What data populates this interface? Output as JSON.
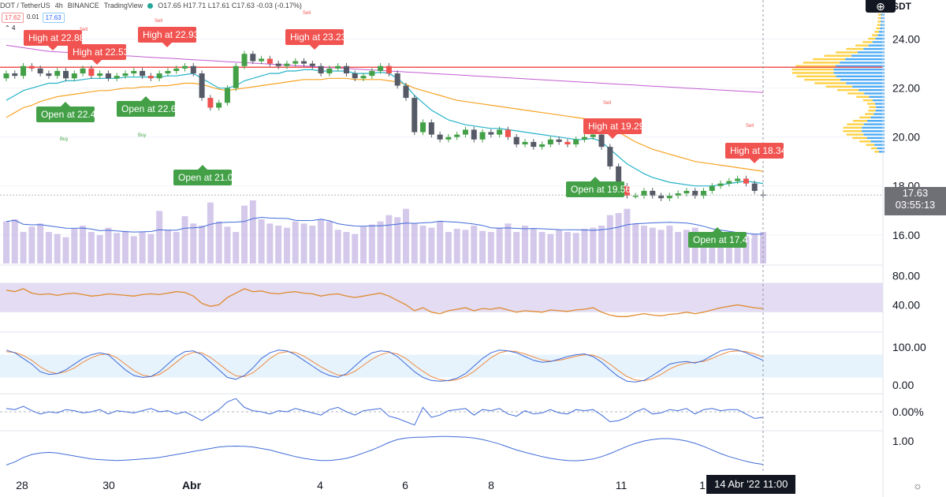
{
  "header": {
    "symbol": "DOT / TetherUS",
    "interval": "4h",
    "exchange": "BINANCE",
    "platform": "TradingView",
    "ohlc": "O17.65 H17.71 L17.61 C17.63 -0.03 (-0.17%)",
    "bid": "17.62",
    "spread": "0.01",
    "ask": "17.63",
    "indicator_count": "4",
    "currency": "USDT"
  },
  "flags": [
    {
      "kind": "high",
      "text": "High at 22.88"
    },
    {
      "kind": "high",
      "text": "High at 22.53"
    },
    {
      "kind": "high",
      "text": "High at 22.93"
    },
    {
      "kind": "high",
      "text": "High at 23.23"
    },
    {
      "kind": "high",
      "text": "High at 19.29"
    },
    {
      "kind": "high",
      "text": "High at 18.34"
    },
    {
      "kind": "open",
      "text": "Open at 22.44"
    },
    {
      "kind": "open",
      "text": "Open at 22.6"
    },
    {
      "kind": "open",
      "text": "Open at 21.07"
    },
    {
      "kind": "open",
      "text": "Open at 19.56"
    },
    {
      "kind": "open",
      "text": "Open at 17.47"
    }
  ],
  "signals": {
    "sell": "Sell",
    "buy": "Buy"
  },
  "last_price": {
    "price": "17.63",
    "countdown": "03:55:13"
  },
  "crosshair_date": "14 Abr '22   11:00",
  "chart_data": {
    "type": "candlestick",
    "x_ticks": [
      "28",
      "30",
      "Abr",
      "4",
      "6",
      "8",
      "11",
      "1"
    ],
    "price_axis": {
      "ticks": [
        "24.00",
        "22.00",
        "20.00",
        "18.00",
        "16.00"
      ],
      "range": [
        14.8,
        25.6
      ]
    },
    "rsi_axis": {
      "ticks": [
        "80.00",
        "40.00"
      ],
      "band": [
        30,
        70
      ]
    },
    "stoch_axis": {
      "ticks": [
        "100.00",
        "0.00"
      ],
      "band": [
        20,
        80
      ]
    },
    "osc_axis": {
      "ticks": [
        "0.00%"
      ]
    },
    "vol_axis": {
      "ticks": [
        "1.00"
      ]
    },
    "resistance_level": 22.85,
    "price_close": [
      22.6,
      22.5,
      22.9,
      22.8,
      22.6,
      22.5,
      22.7,
      22.4,
      22.6,
      22.8,
      22.5,
      22.6,
      22.4,
      22.5,
      22.6,
      22.7,
      22.5,
      22.4,
      22.6,
      22.7,
      22.8,
      22.9,
      22.6,
      21.6,
      21.2,
      21.4,
      22.0,
      22.9,
      23.4,
      23.1,
      23.2,
      23.0,
      22.9,
      23.0,
      23.1,
      23.0,
      22.9,
      22.6,
      22.8,
      22.9,
      22.6,
      22.4,
      22.5,
      22.7,
      22.9,
      22.6,
      22.1,
      21.6,
      20.2,
      20.6,
      20.1,
      19.9,
      20.0,
      20.1,
      20.3,
      19.9,
      20.2,
      20.1,
      20.3,
      20.0,
      19.7,
      19.8,
      19.6,
      19.7,
      19.9,
      19.8,
      19.7,
      19.9,
      20.0,
      20.1,
      19.6,
      18.8,
      18.0,
      17.6,
      17.6,
      17.8,
      17.6,
      17.5,
      17.6,
      17.7,
      17.8,
      17.6,
      17.8,
      18.0,
      18.1,
      18.2,
      18.3,
      18.1,
      17.8,
      17.63
    ],
    "price_open": [
      22.4,
      22.6,
      22.5,
      22.9,
      22.8,
      22.6,
      22.5,
      22.7,
      22.4,
      22.6,
      22.8,
      22.5,
      22.6,
      22.4,
      22.5,
      22.6,
      22.7,
      22.5,
      22.4,
      22.6,
      22.7,
      22.8,
      22.9,
      22.6,
      21.6,
      21.2,
      21.4,
      22.0,
      22.9,
      23.4,
      23.1,
      23.2,
      23.0,
      22.9,
      23.0,
      23.1,
      23.0,
      22.9,
      22.6,
      22.8,
      22.9,
      22.6,
      22.4,
      22.5,
      22.7,
      22.9,
      22.6,
      22.1,
      21.6,
      20.2,
      20.6,
      20.1,
      19.9,
      20.0,
      20.1,
      20.3,
      19.9,
      20.2,
      20.1,
      20.3,
      20.0,
      19.7,
      19.8,
      19.6,
      19.7,
      19.9,
      19.8,
      19.7,
      19.9,
      20.0,
      20.1,
      19.6,
      18.8,
      18.0,
      17.6,
      17.6,
      17.8,
      17.6,
      17.5,
      17.6,
      17.7,
      17.8,
      17.6,
      17.8,
      18.0,
      18.1,
      18.2,
      18.3,
      18.1,
      17.65
    ],
    "ma_fast": [
      21.5,
      21.7,
      21.9,
      22.0,
      22.1,
      22.2,
      22.2,
      22.3,
      22.3,
      22.35,
      22.4,
      22.4,
      22.4,
      22.4,
      22.45,
      22.45,
      22.45,
      22.45,
      22.45,
      22.5,
      22.5,
      22.55,
      22.6,
      22.4,
      22.2,
      22.0,
      22.0,
      22.1,
      22.3,
      22.4,
      22.5,
      22.6,
      22.6,
      22.7,
      22.7,
      22.75,
      22.75,
      22.7,
      22.7,
      22.7,
      22.7,
      22.6,
      22.6,
      22.6,
      22.65,
      22.6,
      22.4,
      22.1,
      21.7,
      21.4,
      21.1,
      20.9,
      20.7,
      20.6,
      20.5,
      20.45,
      20.4,
      20.35,
      20.35,
      20.3,
      20.25,
      20.2,
      20.15,
      20.1,
      20.05,
      20.0,
      19.95,
      19.9,
      19.9,
      19.95,
      19.8,
      19.5,
      19.2,
      18.9,
      18.7,
      18.5,
      18.35,
      18.25,
      18.15,
      18.1,
      18.05,
      18.0,
      18.0,
      18.0,
      18.05,
      18.1,
      18.15,
      18.2,
      18.15,
      18.1
    ],
    "ma_slow": [
      20.8,
      21.0,
      21.2,
      21.3,
      21.45,
      21.55,
      21.65,
      21.7,
      21.75,
      21.8,
      21.85,
      21.9,
      21.9,
      21.95,
      22.0,
      22.0,
      22.05,
      22.05,
      22.1,
      22.1,
      22.15,
      22.2,
      22.2,
      22.15,
      22.05,
      21.95,
      21.9,
      21.95,
      22.0,
      22.05,
      22.1,
      22.15,
      22.2,
      22.25,
      22.3,
      22.35,
      22.35,
      22.35,
      22.4,
      22.4,
      22.4,
      22.35,
      22.35,
      22.35,
      22.35,
      22.3,
      22.25,
      22.15,
      22.0,
      21.9,
      21.8,
      21.7,
      21.6,
      21.5,
      21.45,
      21.4,
      21.35,
      21.3,
      21.25,
      21.2,
      21.15,
      21.1,
      21.05,
      21.0,
      20.95,
      20.9,
      20.85,
      20.8,
      20.75,
      20.7,
      20.6,
      20.4,
      20.2,
      20.0,
      19.8,
      19.65,
      19.5,
      19.4,
      19.3,
      19.2,
      19.1,
      19.0,
      18.95,
      18.9,
      18.85,
      18.8,
      18.75,
      18.7,
      18.65,
      18.6
    ],
    "long_ma": [
      23.75,
      23.7,
      23.65,
      23.6,
      23.55,
      23.5,
      23.48,
      23.46,
      23.44,
      23.42,
      23.4,
      23.38,
      23.36,
      23.34,
      23.32,
      23.3,
      23.28,
      23.26,
      23.24,
      23.22,
      23.2,
      23.18,
      23.16,
      23.14,
      23.12,
      23.1,
      23.08,
      23.06,
      23.04,
      23.02,
      23.0,
      22.98,
      22.96,
      22.94,
      22.92,
      22.9,
      22.88,
      22.86,
      22.84,
      22.82,
      22.8,
      22.78,
      22.76,
      22.74,
      22.72,
      22.7,
      22.68,
      22.66,
      22.64,
      22.62,
      22.6,
      22.58,
      22.56,
      22.54,
      22.52,
      22.5,
      22.48,
      22.46,
      22.44,
      22.42,
      22.4,
      22.38,
      22.36,
      22.34,
      22.32,
      22.3,
      22.28,
      22.26,
      22.24,
      22.22,
      22.2,
      22.18,
      22.16,
      22.14,
      22.12,
      22.1,
      22.08,
      22.06,
      22.04,
      22.02,
      22.0,
      21.98,
      21.96,
      21.94,
      21.92,
      21.9,
      21.88,
      21.86,
      21.84,
      21.82
    ],
    "volume": [
      40,
      42,
      30,
      35,
      38,
      30,
      28,
      25,
      33,
      36,
      30,
      27,
      34,
      29,
      31,
      26,
      30,
      28,
      50,
      32,
      30,
      45,
      38,
      36,
      58,
      40,
      35,
      30,
      55,
      60,
      42,
      38,
      36,
      34,
      40,
      38,
      36,
      42,
      40,
      32,
      30,
      28,
      35,
      37,
      40,
      46,
      44,
      52,
      38,
      36,
      34,
      40,
      30,
      33,
      32,
      36,
      31,
      30,
      34,
      38,
      30,
      36,
      33,
      30,
      28,
      32,
      30,
      29,
      33,
      34,
      36,
      46,
      48,
      52,
      38,
      36,
      34,
      32,
      36,
      30,
      32,
      34,
      30,
      28,
      26,
      24,
      22,
      26,
      28,
      30
    ],
    "rsi": [
      60,
      58,
      62,
      56,
      54,
      55,
      53,
      55,
      56,
      54,
      52,
      53,
      55,
      54,
      53,
      52,
      54,
      55,
      54,
      56,
      58,
      57,
      52,
      42,
      38,
      40,
      50,
      56,
      62,
      58,
      59,
      56,
      55,
      57,
      58,
      56,
      55,
      52,
      54,
      55,
      52,
      50,
      52,
      54,
      56,
      52,
      46,
      40,
      32,
      36,
      30,
      28,
      32,
      34,
      36,
      32,
      35,
      34,
      36,
      33,
      30,
      32,
      31,
      30,
      33,
      32,
      31,
      33,
      34,
      36,
      30,
      26,
      24,
      24,
      26,
      28,
      26,
      25,
      27,
      28,
      30,
      28,
      30,
      33,
      36,
      38,
      40,
      38,
      36,
      35
    ],
    "stoch_k": [
      92,
      85,
      70,
      55,
      35,
      28,
      30,
      40,
      55,
      70,
      80,
      85,
      80,
      60,
      40,
      25,
      20,
      22,
      35,
      55,
      75,
      88,
      90,
      80,
      60,
      40,
      20,
      15,
      25,
      45,
      70,
      85,
      92,
      90,
      80,
      65,
      50,
      35,
      25,
      20,
      30,
      50,
      70,
      85,
      90,
      88,
      75,
      55,
      35,
      20,
      12,
      10,
      12,
      18,
      30,
      50,
      70,
      85,
      92,
      90,
      85,
      75,
      65,
      60,
      62,
      68,
      75,
      80,
      82,
      75,
      60,
      40,
      22,
      10,
      8,
      12,
      25,
      40,
      55,
      60,
      62,
      58,
      65,
      78,
      90,
      95,
      92,
      85,
      75,
      65
    ],
    "stoch_d": [
      88,
      86,
      78,
      65,
      48,
      35,
      30,
      35,
      45,
      60,
      72,
      80,
      82,
      72,
      55,
      38,
      26,
      22,
      28,
      42,
      60,
      78,
      86,
      85,
      73,
      56,
      38,
      24,
      22,
      32,
      50,
      70,
      84,
      88,
      86,
      76,
      62,
      48,
      36,
      26,
      26,
      36,
      52,
      68,
      80,
      86,
      82,
      70,
      52,
      36,
      22,
      14,
      11,
      14,
      22,
      36,
      54,
      72,
      85,
      90,
      88,
      82,
      74,
      66,
      63,
      65,
      70,
      76,
      80,
      79,
      70,
      55,
      38,
      22,
      13,
      11,
      17,
      28,
      42,
      52,
      58,
      60,
      62,
      70,
      80,
      88,
      90,
      88,
      82,
      74
    ],
    "osc_pct": [
      0.3,
      0.2,
      0.5,
      0.1,
      -0.2,
      0.0,
      -0.1,
      0.2,
      0.1,
      -0.1,
      0.0,
      0.2,
      -0.2,
      0.1,
      0.0,
      -0.1,
      0.1,
      0.3,
      0.0,
      0.1,
      -0.2,
      0.0,
      -0.4,
      -0.8,
      -0.3,
      0.2,
      0.9,
      1.2,
      0.4,
      0.1,
      0.0,
      -0.2,
      0.1,
      0.0,
      0.3,
      0.1,
      -0.1,
      -0.3,
      0.2,
      0.4,
      0.0,
      -0.3,
      0.1,
      0.2,
      0.3,
      -0.4,
      -0.6,
      -0.9,
      -1.2,
      0.4,
      -0.5,
      -0.3,
      0.1,
      0.2,
      0.3,
      -0.3,
      0.2,
      0.1,
      0.3,
      -0.2,
      -0.4,
      0.1,
      -0.2,
      -0.1,
      0.2,
      -0.1,
      -0.2,
      0.2,
      0.1,
      0.2,
      -0.3,
      -0.9,
      -0.8,
      -0.5,
      0.0,
      0.3,
      -0.2,
      -0.1,
      0.2,
      0.1,
      0.3,
      -0.2,
      0.2,
      0.3,
      0.1,
      0.2,
      0.2,
      -0.2,
      -0.6,
      -0.5
    ],
    "vol_ind": [
      0.2,
      0.3,
      0.45,
      0.55,
      0.6,
      0.62,
      0.6,
      0.55,
      0.5,
      0.45,
      0.4,
      0.38,
      0.36,
      0.35,
      0.36,
      0.38,
      0.4,
      0.42,
      0.45,
      0.5,
      0.55,
      0.6,
      0.65,
      0.7,
      0.75,
      0.8,
      0.82,
      0.83,
      0.82,
      0.8,
      0.75,
      0.7,
      0.62,
      0.55,
      0.48,
      0.42,
      0.38,
      0.35,
      0.35,
      0.38,
      0.42,
      0.5,
      0.6,
      0.7,
      0.82,
      0.95,
      1.05,
      1.1,
      1.12,
      1.13,
      1.14,
      1.15,
      1.15,
      1.14,
      1.13,
      1.1,
      1.05,
      0.98,
      0.9,
      0.8,
      0.7,
      0.62,
      0.55,
      0.48,
      0.42,
      0.38,
      0.35,
      0.34,
      0.36,
      0.4,
      0.48,
      0.58,
      0.7,
      0.82,
      0.92,
      1.0,
      1.05,
      1.08,
      1.08,
      1.05,
      1.0,
      0.92,
      0.82,
      0.7,
      0.58,
      0.48,
      0.4,
      0.32,
      0.26,
      0.22
    ]
  }
}
